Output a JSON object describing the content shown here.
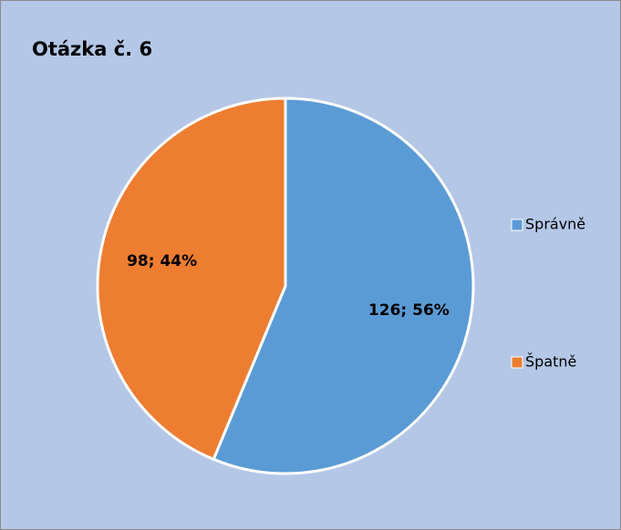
{
  "chart_data": {
    "type": "pie",
    "title": "Otázka č. 6",
    "categories": [
      "Správně",
      "Špatně"
    ],
    "values": [
      126,
      98
    ],
    "value_labels": [
      "126; 56%",
      "98; 44%"
    ],
    "colors": [
      "#5b9bd5",
      "#ed7d31"
    ],
    "legend": "right"
  }
}
